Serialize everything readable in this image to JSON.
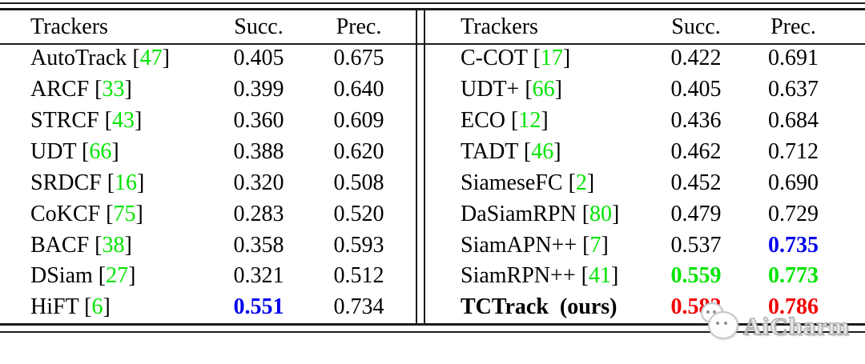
{
  "table": {
    "format": {
      "bracket_open": "[",
      "bracket_close": "]"
    },
    "left": {
      "header": {
        "trackers": "Trackers",
        "succ": "Succ.",
        "prec": "Prec."
      },
      "rows": [
        {
          "name": "AutoTrack",
          "cite": "47",
          "succ": "0.405",
          "prec": "0.675"
        },
        {
          "name": "ARCF",
          "cite": "33",
          "succ": "0.399",
          "prec": "0.640"
        },
        {
          "name": "STRCF",
          "cite": "43",
          "succ": "0.360",
          "prec": "0.609"
        },
        {
          "name": "UDT",
          "cite": "66",
          "succ": "0.388",
          "prec": "0.620"
        },
        {
          "name": "SRDCF",
          "cite": "16",
          "succ": "0.320",
          "prec": "0.508"
        },
        {
          "name": "CoKCF",
          "cite": "75",
          "succ": "0.283",
          "prec": "0.520"
        },
        {
          "name": "BACF",
          "cite": "38",
          "succ": "0.358",
          "prec": "0.593"
        },
        {
          "name": "DSiam",
          "cite": "27",
          "succ": "0.321",
          "prec": "0.512"
        },
        {
          "name": "HiFT",
          "cite": "6",
          "succ": "0.551",
          "prec": "0.734",
          "succ_hl": "blue"
        }
      ]
    },
    "right": {
      "header": {
        "trackers": "Trackers",
        "succ": "Succ.",
        "prec": "Prec."
      },
      "rows": [
        {
          "name": "C-COT",
          "cite": "17",
          "succ": "0.422",
          "prec": "0.691"
        },
        {
          "name": "UDT+",
          "cite": "66",
          "succ": "0.405",
          "prec": "0.637"
        },
        {
          "name": "ECO",
          "cite": "12",
          "succ": "0.436",
          "prec": "0.684"
        },
        {
          "name": "TADT",
          "cite": "46",
          "succ": "0.462",
          "prec": "0.712"
        },
        {
          "name": "SiameseFC",
          "cite": "2",
          "succ": "0.452",
          "prec": "0.690"
        },
        {
          "name": "DaSiamRPN",
          "cite": "80",
          "succ": "0.479",
          "prec": "0.729"
        },
        {
          "name": "SiamAPN++",
          "cite": "7",
          "succ": "0.537",
          "prec": "0.735",
          "prec_hl": "blue"
        },
        {
          "name": "SiamRPN++",
          "cite": "41",
          "succ": "0.559",
          "prec": "0.773",
          "succ_hl": "green",
          "prec_hl": "green"
        },
        {
          "name": "TCTrack (ours)",
          "succ": "0.582",
          "prec": "0.786",
          "succ_hl": "red",
          "prec_hl": "red",
          "name_bold": "true"
        }
      ]
    }
  },
  "colors": {
    "citation_green": "#00e400",
    "highlight_blue": "#0000ee",
    "highlight_green": "#00e400",
    "highlight_red": "#f30000",
    "rule_black": "#1b1b1b"
  },
  "watermark": {
    "text": "AiCharm"
  }
}
